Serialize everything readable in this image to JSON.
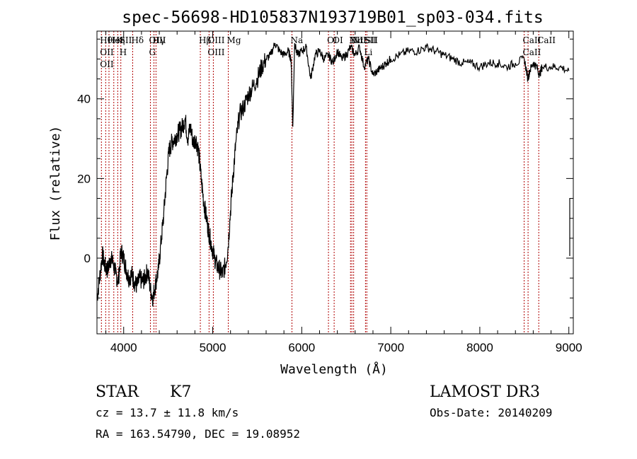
{
  "chart_data": {
    "type": "line",
    "title": "spec-56698-HD105837N193719B01_sp03-034.fits",
    "xlabel": "Wavelength (Å)",
    "ylabel": "Flux (relative)",
    "xlim": [
      3700,
      9050
    ],
    "ylim": [
      -19,
      57
    ],
    "xticks": [
      4000,
      5000,
      6000,
      7000,
      8000,
      9000
    ],
    "xtick_labels": [
      "4000",
      "5000",
      "6000",
      "7000",
      "8000",
      "9000"
    ],
    "yticks": [
      0,
      20,
      40
    ],
    "ytick_labels": [
      "0",
      "20",
      "40"
    ],
    "series": [
      {
        "x": [
          3700,
          3730,
          3760,
          3790,
          3820,
          3850,
          3880,
          3910,
          3940,
          3970,
          4000,
          4030,
          4060,
          4090,
          4120,
          4150,
          4180,
          4210,
          4240,
          4270,
          4300,
          4330,
          4360,
          4390,
          4420,
          4450,
          4480,
          4510,
          4540,
          4570,
          4600,
          4630,
          4660,
          4690,
          4720,
          4750,
          4780,
          4810,
          4840,
          4870,
          4900,
          4930,
          4960,
          4990,
          5020,
          5050,
          5080,
          5110,
          5140,
          5170,
          5200,
          5230,
          5260,
          5300,
          5350,
          5400,
          5450,
          5500,
          5550,
          5600,
          5650,
          5700,
          5750,
          5800,
          5850,
          5880,
          5900,
          5920,
          5950,
          6000,
          6050,
          6100,
          6150,
          6200,
          6250,
          6300,
          6350,
          6400,
          6450,
          6500,
          6550,
          6600,
          6650,
          6700,
          6750,
          6800,
          6850,
          6900,
          6950,
          7000,
          7100,
          7200,
          7300,
          7400,
          7500,
          7600,
          7700,
          7800,
          7900,
          8000,
          8100,
          8200,
          8300,
          8400,
          8500,
          8540,
          8560,
          8600,
          8640,
          8670,
          8700,
          8800,
          8900,
          9000
        ],
        "y": [
          -10,
          -5,
          1,
          -2,
          -3,
          0,
          -1,
          -4,
          -6,
          2,
          0,
          -3,
          -5,
          -4,
          -6,
          -7,
          -5,
          -6,
          -5,
          -3,
          -8,
          -10,
          -6,
          -3,
          4,
          11,
          20,
          27,
          29,
          30,
          31,
          32,
          33,
          35,
          30,
          33,
          29,
          30,
          27,
          20,
          14,
          10,
          6,
          3,
          0,
          -2,
          -3,
          -4,
          -2,
          2,
          12,
          21,
          29,
          36,
          38,
          41,
          43,
          45,
          48,
          50,
          51,
          54,
          52,
          51,
          52,
          50,
          33,
          54,
          51,
          52,
          53,
          45,
          51,
          52,
          50,
          51,
          49,
          52,
          50,
          51,
          53,
          51,
          53,
          48,
          50,
          46,
          47,
          48,
          49,
          50,
          51,
          52,
          52,
          53,
          52,
          51,
          50,
          49,
          49,
          48,
          49,
          49,
          48,
          49,
          50,
          45,
          47,
          49,
          48,
          46,
          48,
          48,
          48,
          47
        ]
      }
    ],
    "lines": [
      {
        "x": 3750,
        "labels": [
          "Hθ",
          "OII",
          "OII"
        ]
      },
      {
        "x": 3798,
        "labels": []
      },
      {
        "x": 3835,
        "labels": [
          "HeI"
        ]
      },
      {
        "x": 3889,
        "labels": [
          "Hη"
        ]
      },
      {
        "x": 3933,
        "labels": [
          "K"
        ]
      },
      {
        "x": 3968,
        "labels": [
          "SII",
          "H"
        ]
      },
      {
        "x": 4101,
        "labels": [
          "Hδ"
        ]
      },
      {
        "x": 4300,
        "labels": [
          "OIII",
          "G"
        ]
      },
      {
        "x": 4340,
        "labels": [
          "Hγ"
        ]
      },
      {
        "x": 4363,
        "labels": []
      },
      {
        "x": 4861,
        "labels": [
          "Hβ"
        ]
      },
      {
        "x": 4959,
        "labels": [
          "OIII",
          "OIII"
        ]
      },
      {
        "x": 5007,
        "labels": []
      },
      {
        "x": 5175,
        "labels": [
          "Mg"
        ]
      },
      {
        "x": 5890,
        "labels": [
          "Na"
        ]
      },
      {
        "x": 6300,
        "labels": [
          "OI"
        ]
      },
      {
        "x": 6364,
        "labels": [
          "OI"
        ]
      },
      {
        "x": 6548,
        "labels": [
          "NII"
        ]
      },
      {
        "x": 6563,
        "labels": [
          "Hα"
        ]
      },
      {
        "x": 6583,
        "labels": [
          "NII"
        ]
      },
      {
        "x": 6716,
        "labels": [
          "SII",
          "Li"
        ]
      },
      {
        "x": 6731,
        "labels": [
          "SII"
        ]
      },
      {
        "x": 8498,
        "labels": [
          "CaII",
          "CaII"
        ]
      },
      {
        "x": 8542,
        "labels": []
      },
      {
        "x": 8662,
        "labels": [
          "CaII"
        ]
      }
    ]
  },
  "info": {
    "class": "STAR",
    "subclass": "K7",
    "survey": "LAMOST DR3",
    "cz": "cz = 13.7 ± 11.8 km/s",
    "obs_date": "Obs-Date: 20140209",
    "coords": "RA = 163.54790, DEC =  19.08952"
  }
}
